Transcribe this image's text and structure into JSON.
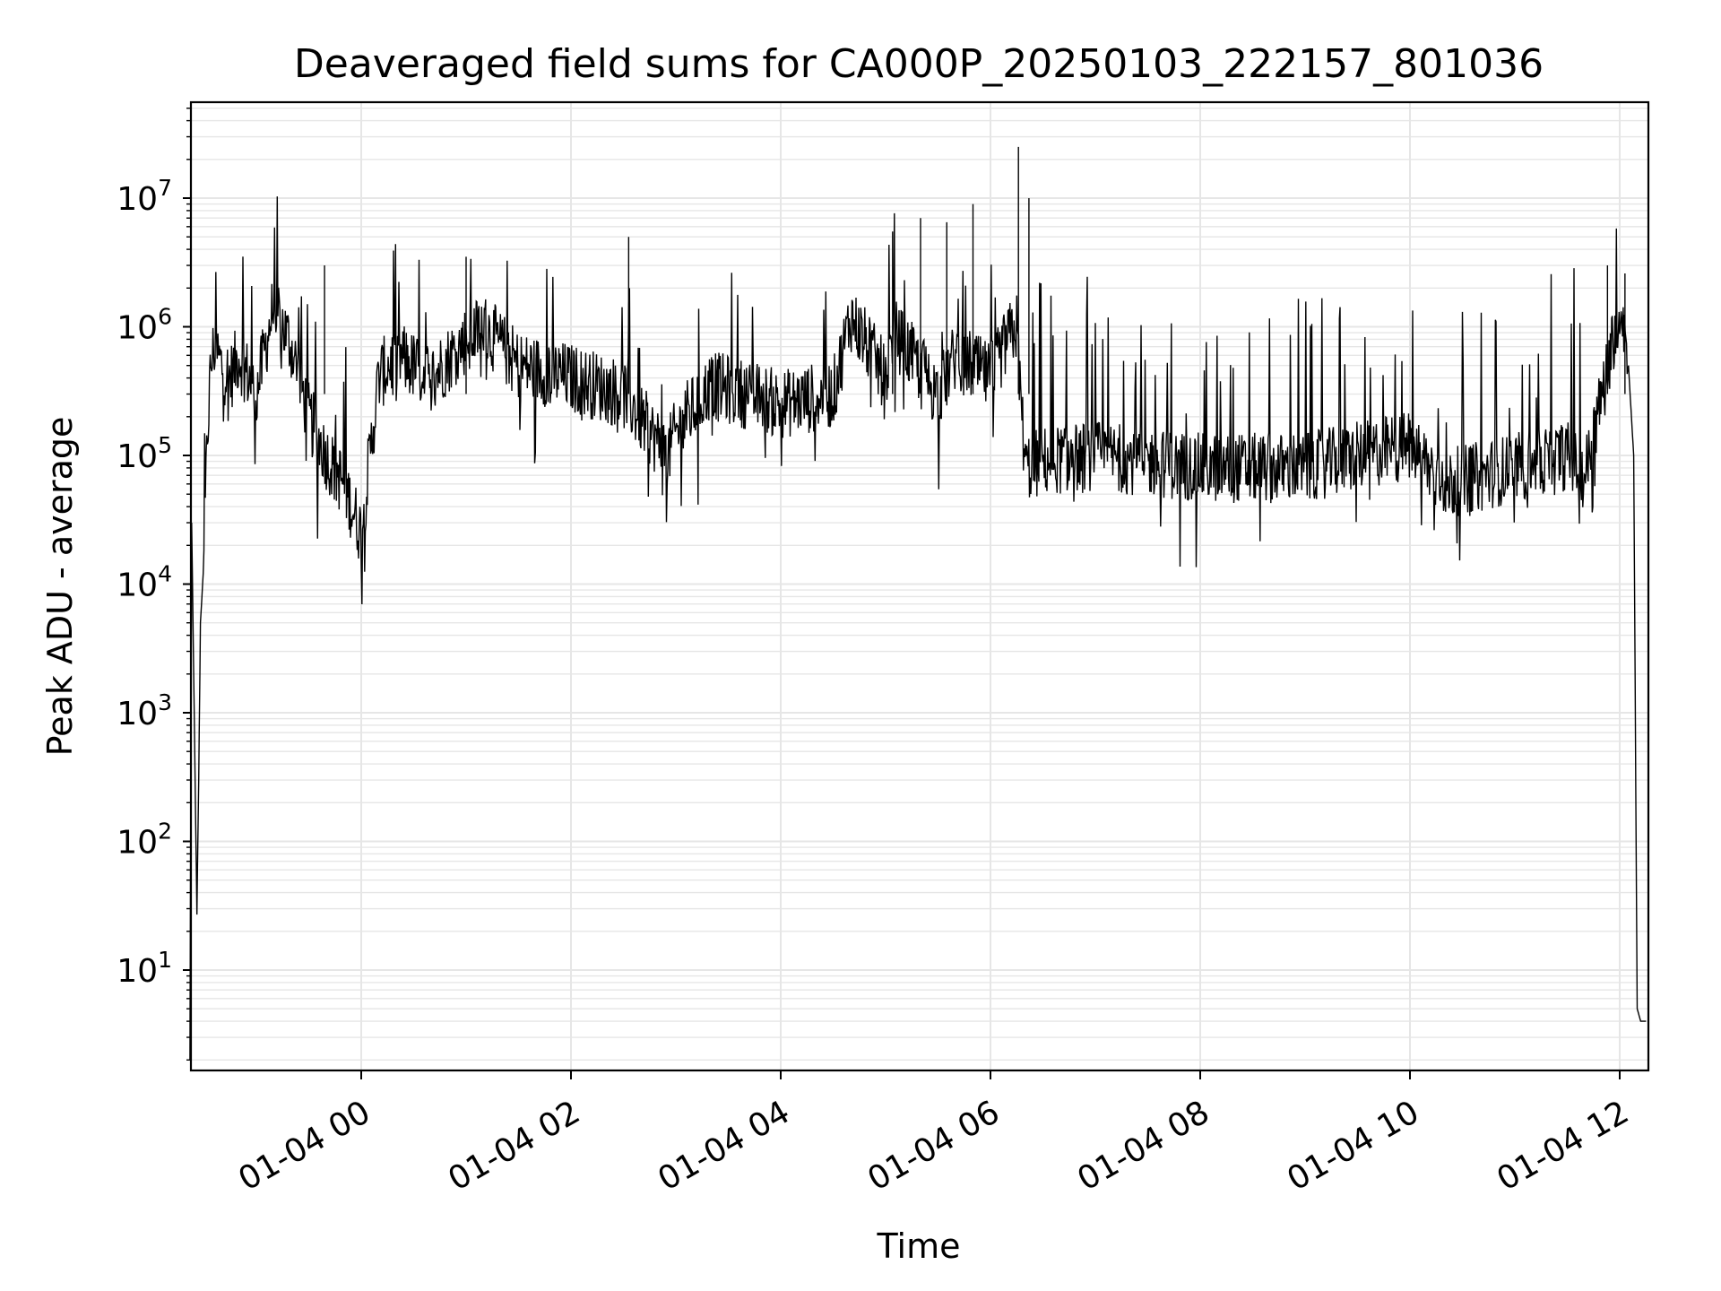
{
  "chart_data": {
    "type": "line",
    "title": "Deaveraged field sums for CA000P_20250103_222157_801036",
    "xlabel": "Time",
    "ylabel": "Peak ADU - average",
    "x_tick_labels": [
      "01-04 00",
      "01-04 02",
      "01-04 04",
      "01-04 06",
      "01-04 08",
      "01-04 10",
      "01-04 12"
    ],
    "y_tick_labels": [
      {
        "base": "10",
        "exp": "1"
      },
      {
        "base": "10",
        "exp": "2"
      },
      {
        "base": "10",
        "exp": "3"
      },
      {
        "base": "10",
        "exp": "4"
      },
      {
        "base": "10",
        "exp": "5"
      },
      {
        "base": "10",
        "exp": "6"
      },
      {
        "base": "10",
        "exp": "7"
      }
    ],
    "x_range": [
      "01-03 22:22",
      "01-04 12:15"
    ],
    "y_scale": "log",
    "y_range": [
      1.6,
      55000000
    ],
    "grid": true,
    "grid_minor_y": true,
    "line_color": "#000000",
    "grid_color": "#e6e6e6",
    "series": [
      {
        "x": [
          "01-03 22:22",
          "01-03 22:23",
          "01-03 22:26",
          "01-03 22:27",
          "01-03 22:28",
          "01-03 22:30",
          "01-03 22:32",
          "01-03 22:34",
          "01-03 22:36",
          "01-03 22:40",
          "01-03 22:45",
          "01-03 22:50",
          "01-03 23:00",
          "01-03 23:10",
          "01-03 23:20",
          "01-03 23:30",
          "01-03 23:40",
          "01-03 23:50",
          "01-04 00:00",
          "01-04 00:10",
          "01-04 00:20",
          "01-04 00:40",
          "01-04 01:00",
          "01-04 01:10",
          "01-04 01:30",
          "01-04 02:00",
          "01-04 02:30",
          "01-04 02:55",
          "01-04 03:00",
          "01-04 03:20",
          "01-04 03:40",
          "01-04 04:00",
          "01-04 04:30",
          "01-04 04:40",
          "01-04 05:00",
          "01-04 05:05",
          "01-04 05:30",
          "01-04 05:40",
          "01-04 06:00",
          "01-04 06:10",
          "01-04 06:15",
          "01-04 06:18",
          "01-04 06:20",
          "01-04 06:30",
          "01-04 07:00",
          "01-04 08:00",
          "01-04 09:00",
          "01-04 10:00",
          "01-04 10:20",
          "01-04 11:00",
          "01-04 11:30",
          "01-04 11:40",
          "01-04 11:50",
          "01-04 12:00",
          "01-04 12:02",
          "01-04 12:05",
          "01-04 12:08",
          "01-04 12:10",
          "01-04 12:12",
          "01-04 12:15"
        ],
        "y": [
          2,
          30000,
          27,
          300,
          5000,
          15000,
          150000,
          500000,
          700000,
          500000,
          400000,
          600000,
          300000,
          1500000,
          700000,
          200000,
          100000,
          60000,
          25000,
          400000,
          600000,
          400000,
          800000,
          1000000,
          500000,
          400000,
          300000,
          100000,
          150000,
          350000,
          300000,
          250000,
          300000,
          1200000,
          400000,
          900000,
          300000,
          600000,
          400000,
          800000,
          1000000,
          200000,
          80000,
          90000,
          100000,
          80000,
          80000,
          120000,
          60000,
          80000,
          100000,
          70000,
          300000,
          1500000,
          1200000,
          500000,
          100000,
          5,
          4,
          4
        ]
      }
    ]
  }
}
